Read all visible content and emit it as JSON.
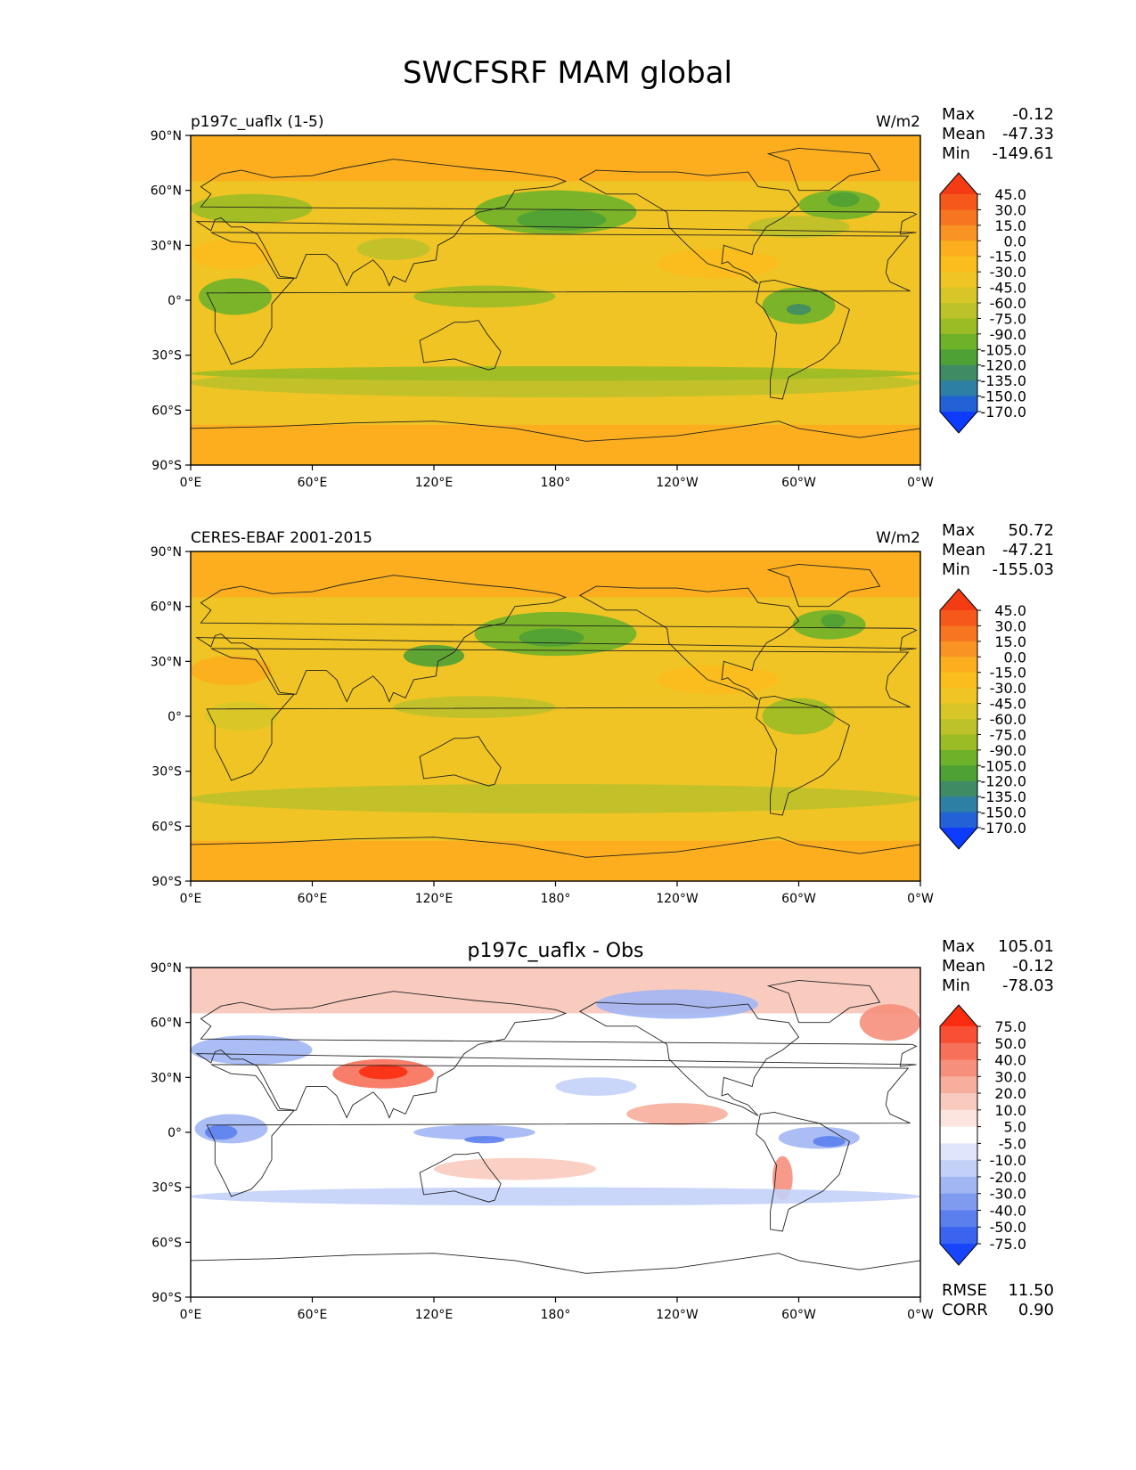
{
  "title": "SWCFSRF MAM global",
  "ticks": {
    "lat_labels": [
      "90°N",
      "60°N",
      "30°N",
      "0°",
      "30°S",
      "60°S",
      "90°S"
    ],
    "lon_labels": [
      "0°E",
      "60°E",
      "120°E",
      "180°",
      "120°W",
      "60°W",
      "0°W"
    ]
  },
  "panels": [
    {
      "title_left": "p197c_uaflx (1-5)",
      "title_center": "",
      "units": "W/m2",
      "stats": [
        {
          "label": "Max",
          "value": "-0.12"
        },
        {
          "label": "Mean",
          "value": "-47.33"
        },
        {
          "label": "Min",
          "value": "-149.61"
        }
      ],
      "colorbar": {
        "labels": [
          "45.0",
          "30.0",
          "15.0",
          "0.0",
          "-15.0",
          "-30.0",
          "-45.0",
          "-60.0",
          "-75.0",
          "-90.0",
          "-105.0",
          "-120.0",
          "-135.0",
          "-150.0",
          "-170.0"
        ],
        "colors": [
          "#f33c14",
          "#f5581a",
          "#f77520",
          "#f99424",
          "#fcae1e",
          "#fbbd1d",
          "#f0c424",
          "#d8c628",
          "#bdc12a",
          "#9cbc25",
          "#6eb22a",
          "#4ea134",
          "#3f8c64",
          "#2d7fa3",
          "#2361d6",
          "#0d3bff"
        ]
      },
      "bottom_stats": []
    },
    {
      "title_left": "CERES-EBAF 2001-2015",
      "title_center": "",
      "units": "W/m2",
      "stats": [
        {
          "label": "Max",
          "value": "50.72"
        },
        {
          "label": "Mean",
          "value": "-47.21"
        },
        {
          "label": "Min",
          "value": "-155.03"
        }
      ],
      "colorbar": {
        "labels": [
          "45.0",
          "30.0",
          "15.0",
          "0.0",
          "-15.0",
          "-30.0",
          "-45.0",
          "-60.0",
          "-75.0",
          "-90.0",
          "-105.0",
          "-120.0",
          "-135.0",
          "-150.0",
          "-170.0"
        ],
        "colors": [
          "#f33c14",
          "#f5581a",
          "#f77520",
          "#f99424",
          "#fcae1e",
          "#fbbd1d",
          "#f0c424",
          "#d8c628",
          "#bdc12a",
          "#9cbc25",
          "#6eb22a",
          "#4ea134",
          "#3f8c64",
          "#2d7fa3",
          "#2361d6",
          "#0d3bff"
        ]
      },
      "bottom_stats": []
    },
    {
      "title_left": "",
      "title_center": "p197c_uaflx - Obs",
      "units": "",
      "stats": [
        {
          "label": "Max",
          "value": "105.01"
        },
        {
          "label": "Mean",
          "value": "-0.12"
        },
        {
          "label": "Min",
          "value": "-78.03"
        }
      ],
      "colorbar": {
        "labels": [
          "75.0",
          "50.0",
          "40.0",
          "30.0",
          "20.0",
          "10.0",
          "5.0",
          "-5.0",
          "-10.0",
          "-20.0",
          "-30.0",
          "-40.0",
          "-50.0",
          "-75.0"
        ],
        "colors": [
          "#fa2d10",
          "#f84f35",
          "#f7705a",
          "#f68f7c",
          "#f7ae9d",
          "#f9cbbf",
          "#fbe5de",
          "#ffffff",
          "#dfe6fb",
          "#c3d0f8",
          "#a2b6f4",
          "#7f9bf0",
          "#5c7fee",
          "#3a63ef",
          "#1845fb"
        ]
      },
      "bottom_stats": [
        {
          "label": "RMSE",
          "value": "11.50"
        },
        {
          "label": "CORR",
          "value": "0.90"
        }
      ]
    }
  ],
  "chart_data": [
    {
      "type": "heatmap",
      "title": "p197c_uaflx (1-5)",
      "units": "W/m2",
      "x_ticks": [
        "0°E",
        "60°E",
        "120°E",
        "180°",
        "120°W",
        "60°W",
        "0°W"
      ],
      "y_ticks": [
        "90°N",
        "60°N",
        "30°N",
        "0°",
        "30°S",
        "60°S",
        "90°S"
      ],
      "xlim": [
        0,
        360
      ],
      "ylim": [
        -90,
        90
      ],
      "levels": [
        -170,
        -150,
        -135,
        -120,
        -105,
        -90,
        -75,
        -60,
        -45,
        -30,
        -15,
        0,
        15,
        30,
        45
      ],
      "stats": {
        "max": -0.12,
        "mean": -47.33,
        "min": -149.61
      }
    },
    {
      "type": "heatmap",
      "title": "CERES-EBAF 2001-2015",
      "units": "W/m2",
      "x_ticks": [
        "0°E",
        "60°E",
        "120°E",
        "180°",
        "120°W",
        "60°W",
        "0°W"
      ],
      "y_ticks": [
        "90°N",
        "60°N",
        "30°N",
        "0°",
        "30°S",
        "60°S",
        "90°S"
      ],
      "xlim": [
        0,
        360
      ],
      "ylim": [
        -90,
        90
      ],
      "levels": [
        -170,
        -150,
        -135,
        -120,
        -105,
        -90,
        -75,
        -60,
        -45,
        -30,
        -15,
        0,
        15,
        30,
        45
      ],
      "stats": {
        "max": 50.72,
        "mean": -47.21,
        "min": -155.03
      }
    },
    {
      "type": "heatmap",
      "title": "p197c_uaflx - Obs",
      "x_ticks": [
        "0°E",
        "60°E",
        "120°E",
        "180°",
        "120°W",
        "60°W",
        "0°W"
      ],
      "y_ticks": [
        "90°N",
        "60°N",
        "30°N",
        "0°",
        "30°S",
        "60°S",
        "90°S"
      ],
      "xlim": [
        0,
        360
      ],
      "ylim": [
        -90,
        90
      ],
      "levels": [
        -75,
        -50,
        -40,
        -30,
        -20,
        -10,
        -5,
        5,
        10,
        20,
        30,
        40,
        50,
        75
      ],
      "stats": {
        "max": 105.01,
        "mean": -0.12,
        "min": -78.03,
        "rmse": 11.5,
        "corr": 0.9
      }
    }
  ]
}
